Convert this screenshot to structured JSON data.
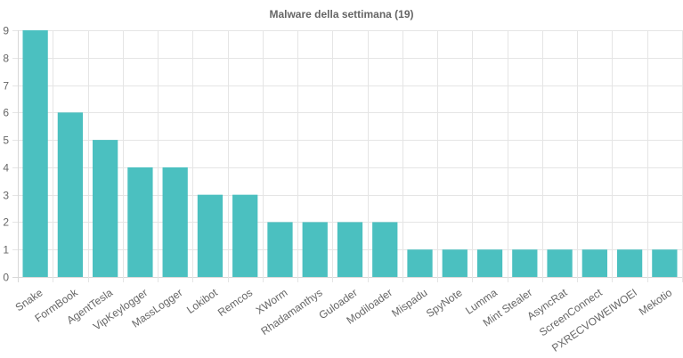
{
  "chart_data": {
    "type": "bar",
    "title": "Malware della settimana (19)",
    "xlabel": "",
    "ylabel": "",
    "categories": [
      "Snake",
      "FormBook",
      "AgentTesla",
      "VipKeylogger",
      "MassLogger",
      "Lokibot",
      "Remcos",
      "XWorm",
      "Rhadamanthys",
      "Guloader",
      "Modiloader",
      "Mispadu",
      "SpyNote",
      "Lumma",
      "Mint Stealer",
      "AsyncRat",
      "ScreenConnect",
      "PXRECVOWEIWOEI",
      "Mekotio"
    ],
    "series": [
      {
        "values": [
          9,
          6,
          5,
          4,
          4,
          3,
          3,
          2,
          2,
          2,
          2,
          1,
          1,
          1,
          1,
          1,
          1,
          1,
          1
        ],
        "color": "#4bc0c0"
      }
    ],
    "ylim": [
      0,
      9
    ],
    "yticks": [
      "0",
      "1",
      "2",
      "3",
      "4",
      "5",
      "6",
      "7",
      "8",
      "9"
    ],
    "grid": true,
    "legend": "none"
  }
}
